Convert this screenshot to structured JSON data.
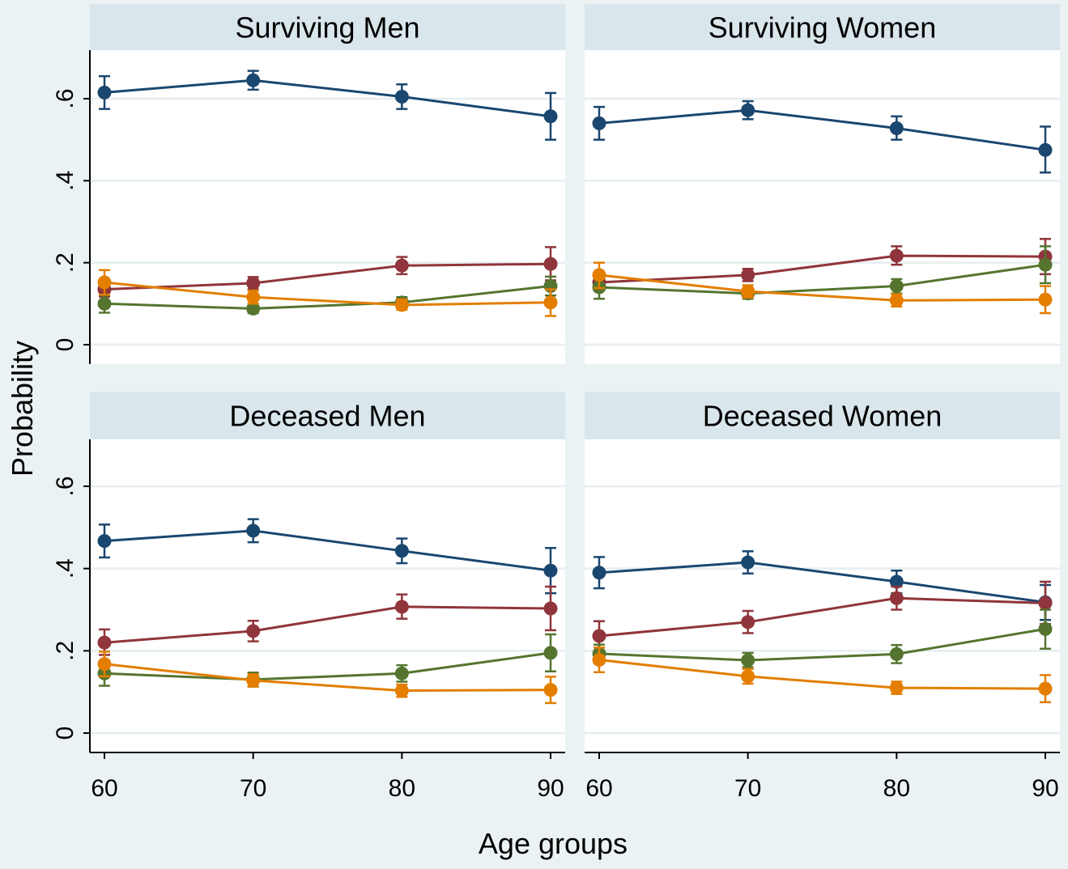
{
  "chart_data": {
    "type": "line",
    "ylabel": "Probability",
    "xlabel": "Age groups",
    "x": [
      60,
      70,
      80,
      90
    ],
    "xticks": [
      "60",
      "70",
      "80",
      "90"
    ],
    "yticks": [
      {
        "value": 0,
        "label": "0"
      },
      {
        "value": 0.2,
        "label": ".2"
      },
      {
        "value": 0.4,
        "label": ".4"
      },
      {
        "value": 0.6,
        "label": ".6"
      }
    ],
    "ylim": [
      -0.05,
      0.72
    ],
    "xlim": [
      59.3,
      90.7
    ],
    "grid": true,
    "series_colors": [
      "#1a476f",
      "#90353b",
      "#55752f",
      "#e37e00"
    ],
    "panels": [
      {
        "title": "Surviving Men",
        "series": [
          {
            "values": [
              0.615,
              0.645,
              0.605,
              0.557
            ],
            "lower": [
              0.575,
              0.622,
              0.575,
              0.5
            ],
            "upper": [
              0.655,
              0.668,
              0.635,
              0.614
            ],
            "color": "#1a476f"
          },
          {
            "values": [
              0.135,
              0.15,
              0.193,
              0.197
            ],
            "lower": [
              0.117,
              0.135,
              0.172,
              0.157
            ],
            "upper": [
              0.153,
              0.165,
              0.214,
              0.238
            ],
            "color": "#90353b"
          },
          {
            "values": [
              0.1,
              0.088,
              0.103,
              0.143
            ],
            "lower": [
              0.078,
              0.077,
              0.09,
              0.12
            ],
            "upper": [
              0.12,
              0.1,
              0.116,
              0.166
            ],
            "color": "#55752f"
          },
          {
            "values": [
              0.152,
              0.116,
              0.097,
              0.103
            ],
            "lower": [
              0.122,
              0.1,
              0.085,
              0.07
            ],
            "upper": [
              0.182,
              0.132,
              0.11,
              0.135
            ],
            "color": "#e37e00"
          }
        ]
      },
      {
        "title": "Surviving Women",
        "series": [
          {
            "values": [
              0.54,
              0.572,
              0.528,
              0.475
            ],
            "lower": [
              0.5,
              0.55,
              0.5,
              0.42
            ],
            "upper": [
              0.58,
              0.594,
              0.557,
              0.532
            ],
            "color": "#1a476f"
          },
          {
            "values": [
              0.152,
              0.17,
              0.217,
              0.215
            ],
            "lower": [
              0.133,
              0.155,
              0.195,
              0.172
            ],
            "upper": [
              0.172,
              0.185,
              0.24,
              0.258
            ],
            "color": "#90353b"
          },
          {
            "values": [
              0.14,
              0.125,
              0.143,
              0.195
            ],
            "lower": [
              0.112,
              0.112,
              0.125,
              0.15
            ],
            "upper": [
              0.165,
              0.138,
              0.16,
              0.24
            ],
            "color": "#55752f"
          },
          {
            "values": [
              0.17,
              0.13,
              0.108,
              0.11
            ],
            "lower": [
              0.138,
              0.115,
              0.093,
              0.077
            ],
            "upper": [
              0.2,
              0.145,
              0.123,
              0.143
            ],
            "color": "#e37e00"
          }
        ]
      },
      {
        "title": "Deceased Men",
        "series": [
          {
            "values": [
              0.467,
              0.492,
              0.443,
              0.395
            ],
            "lower": [
              0.427,
              0.464,
              0.413,
              0.34
            ],
            "upper": [
              0.507,
              0.52,
              0.473,
              0.45
            ],
            "color": "#1a476f"
          },
          {
            "values": [
              0.22,
              0.248,
              0.307,
              0.303
            ],
            "lower": [
              0.19,
              0.223,
              0.278,
              0.25
            ],
            "upper": [
              0.252,
              0.273,
              0.337,
              0.356
            ],
            "color": "#90353b"
          },
          {
            "values": [
              0.145,
              0.13,
              0.145,
              0.195
            ],
            "lower": [
              0.115,
              0.113,
              0.125,
              0.15
            ],
            "upper": [
              0.175,
              0.147,
              0.165,
              0.24
            ],
            "color": "#55752f"
          },
          {
            "values": [
              0.168,
              0.128,
              0.103,
              0.105
            ],
            "lower": [
              0.138,
              0.113,
              0.088,
              0.073
            ],
            "upper": [
              0.198,
              0.143,
              0.118,
              0.137
            ],
            "color": "#e37e00"
          }
        ]
      },
      {
        "title": "Deceased Women",
        "series": [
          {
            "values": [
              0.39,
              0.415,
              0.368,
              0.318
            ],
            "lower": [
              0.352,
              0.388,
              0.34,
              0.275
            ],
            "upper": [
              0.428,
              0.442,
              0.395,
              0.36
            ],
            "color": "#1a476f"
          },
          {
            "values": [
              0.236,
              0.27,
              0.328,
              0.316
            ],
            "lower": [
              0.2,
              0.243,
              0.3,
              0.265
            ],
            "upper": [
              0.272,
              0.297,
              0.356,
              0.368
            ],
            "color": "#90353b"
          },
          {
            "values": [
              0.193,
              0.177,
              0.192,
              0.253
            ],
            "lower": [
              0.17,
              0.16,
              0.17,
              0.205
            ],
            "upper": [
              0.215,
              0.195,
              0.214,
              0.3
            ],
            "color": "#55752f"
          },
          {
            "values": [
              0.178,
              0.138,
              0.11,
              0.108
            ],
            "lower": [
              0.148,
              0.12,
              0.095,
              0.075
            ],
            "upper": [
              0.208,
              0.156,
              0.125,
              0.141
            ],
            "color": "#e37e00"
          }
        ]
      }
    ]
  }
}
